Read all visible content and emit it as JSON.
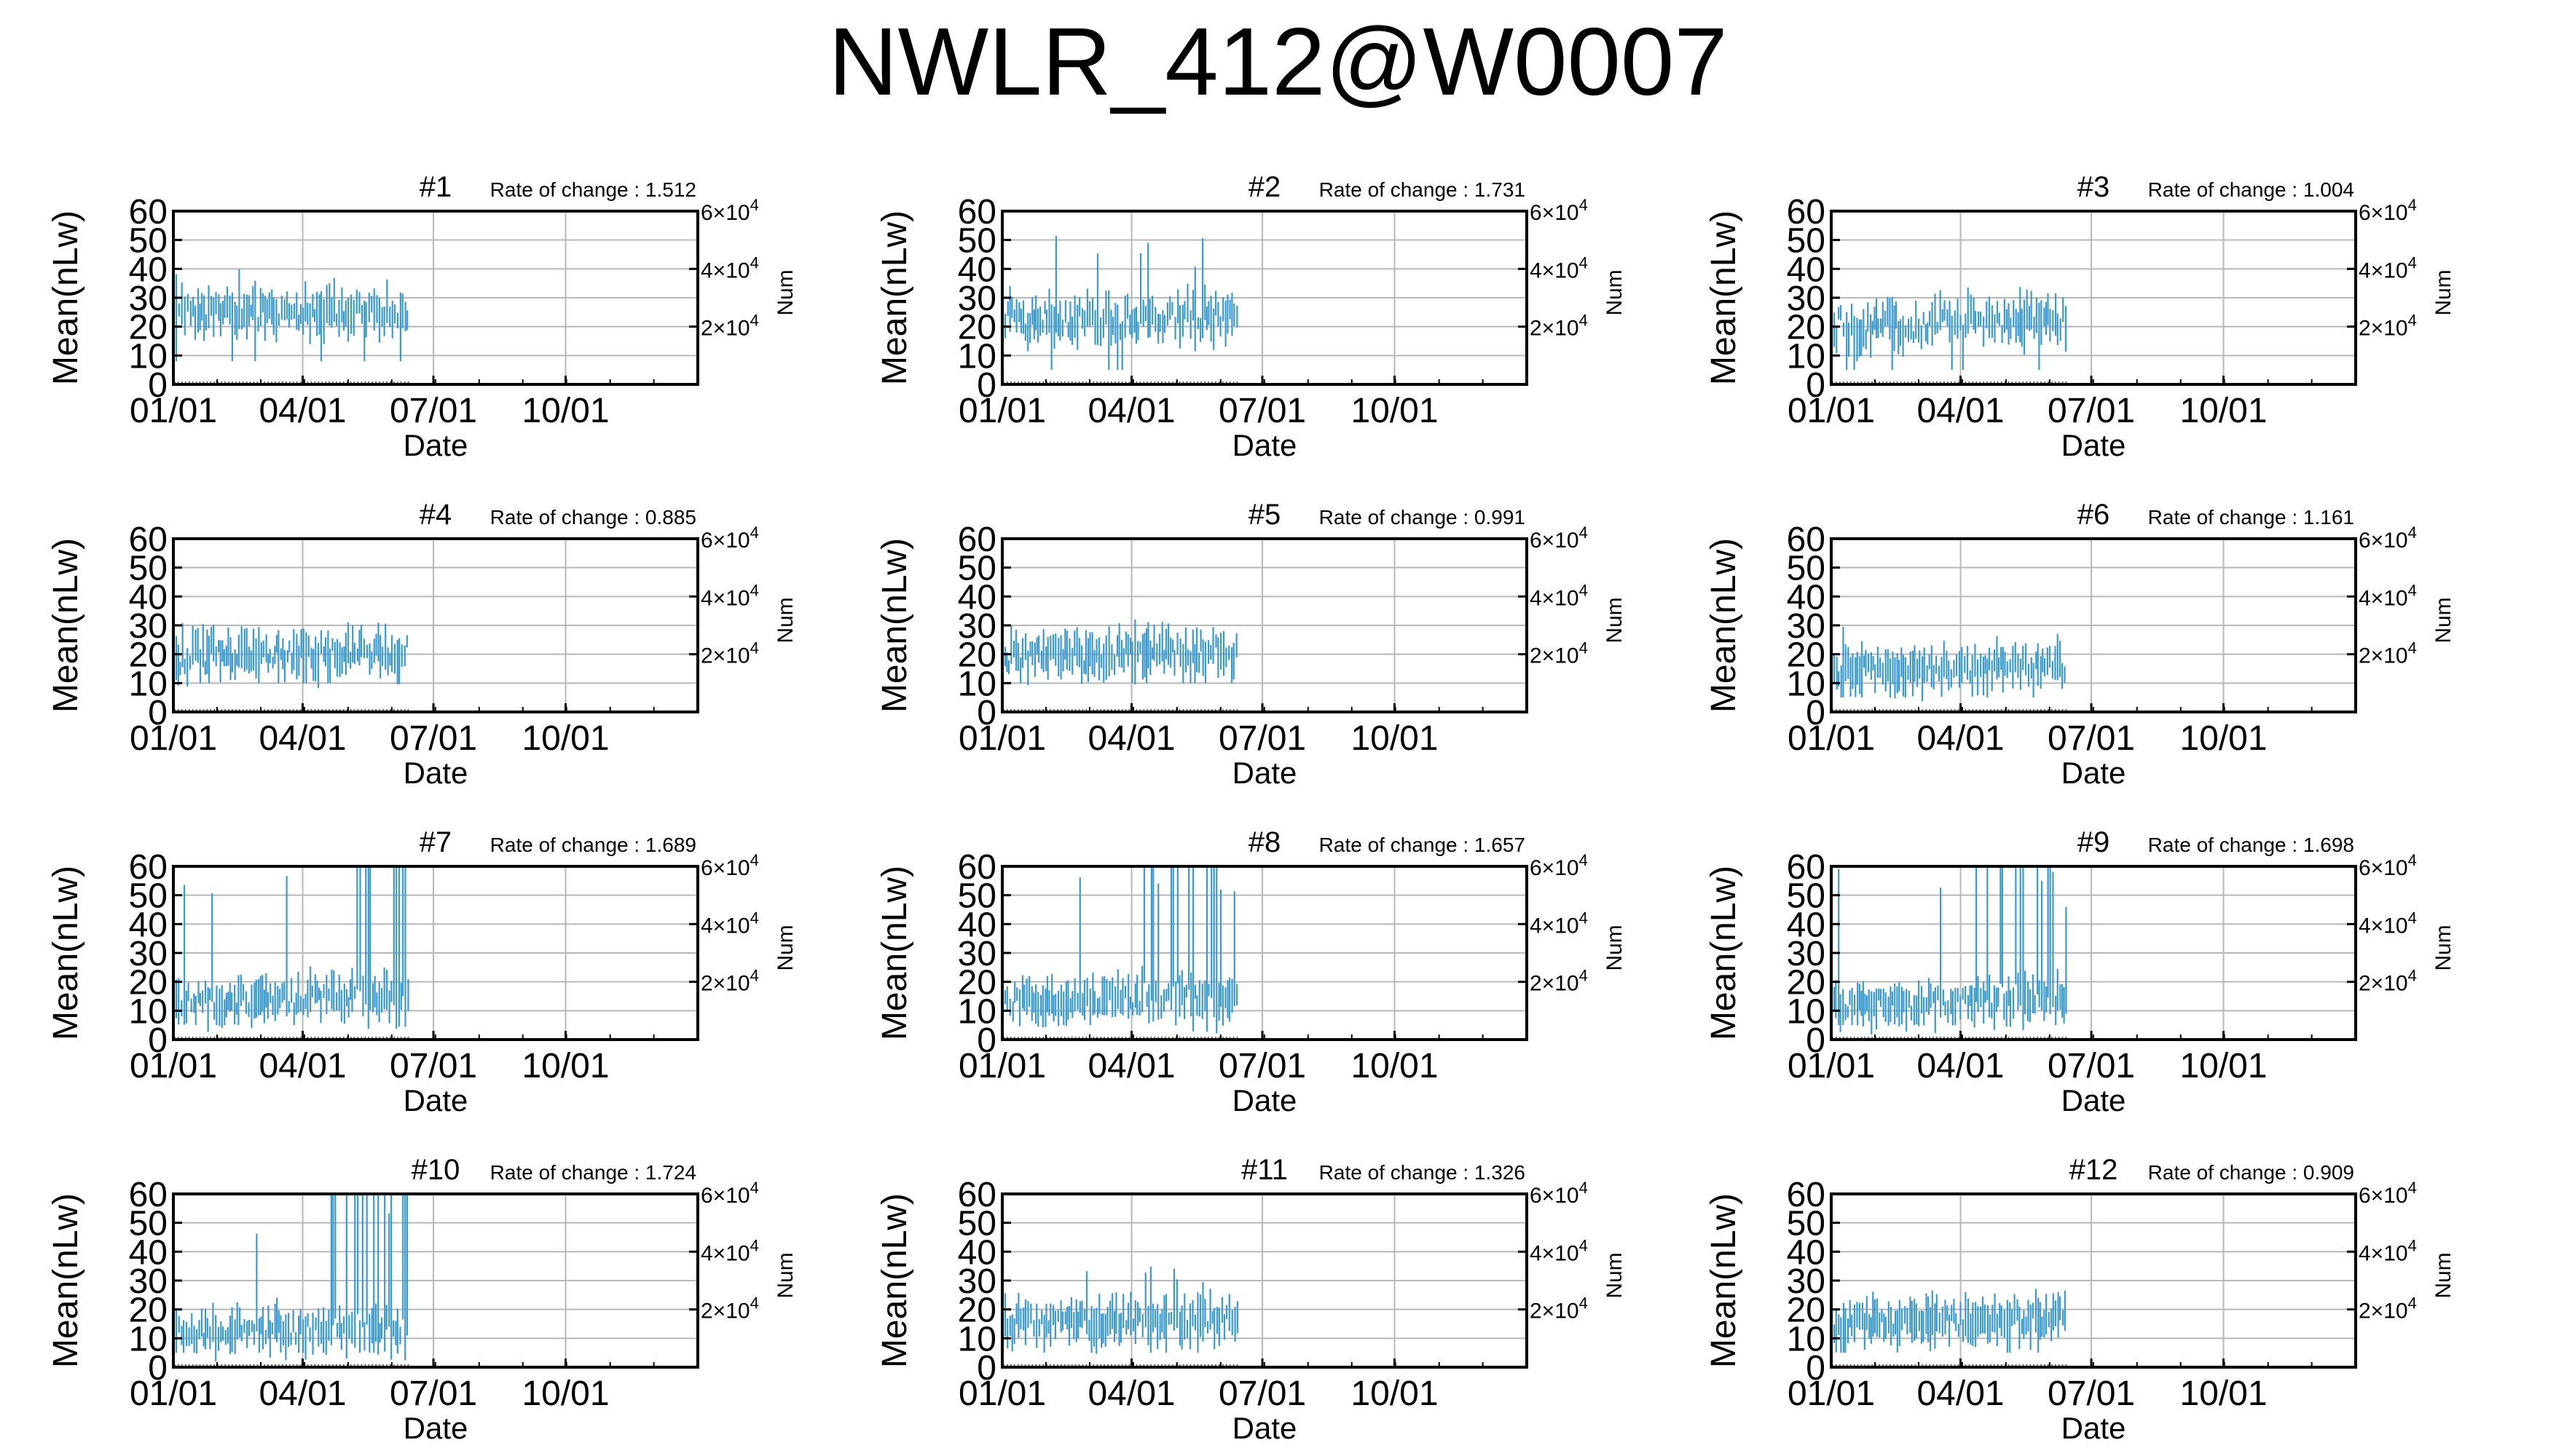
{
  "title": "NWLR_412@W0007",
  "axes": {
    "ylabel": "Mean(nLw)",
    "xlabel": "Date",
    "y2label": "Num",
    "yticks": [
      "0",
      "10",
      "20",
      "30",
      "40",
      "50",
      "60"
    ],
    "xticks": [
      "01/01",
      "04/01",
      "07/01",
      "10/01"
    ],
    "y2ticks": [
      {
        "mant": "2",
        "times": "×10",
        "exp": "4"
      },
      {
        "mant": "4",
        "times": "×10",
        "exp": "4"
      },
      {
        "mant": "6",
        "times": "×10",
        "exp": "4"
      }
    ],
    "rate_prefix": "Rate of change : "
  },
  "colors": {
    "data": "#3a9ad0",
    "grid": "#b8b8b8",
    "axis": "#000000",
    "count": "#555555"
  },
  "chart_data": [
    {
      "type": "line",
      "title": "#1",
      "rate": "1.512",
      "xlim": [
        0,
        365
      ],
      "ylim": [
        0,
        60
      ],
      "y2lim": [
        0,
        60000
      ],
      "x_range": [
        0,
        164
      ],
      "center": 24,
      "spread": 6,
      "outlier_range": [
        8,
        40
      ],
      "gridlines": true
    },
    {
      "type": "line",
      "title": "#2",
      "rate": "1.731",
      "xlim": [
        0,
        365
      ],
      "ylim": [
        0,
        60
      ],
      "y2lim": [
        0,
        60000
      ],
      "x_range": [
        0,
        164
      ],
      "center": 22,
      "spread": 7,
      "outlier_range": [
        5,
        52
      ],
      "gridlines": true
    },
    {
      "type": "line",
      "title": "#3",
      "rate": "1.004",
      "xlim": [
        0,
        365
      ],
      "ylim": [
        0,
        60
      ],
      "y2lim": [
        0,
        60000
      ],
      "x_range": [
        0,
        164
      ],
      "center": 20,
      "spread": 7,
      "outlier_range": [
        5,
        38
      ],
      "gridlines": true
    },
    {
      "type": "line",
      "title": "#4",
      "rate": "0.885",
      "xlim": [
        0,
        365
      ],
      "ylim": [
        0,
        60
      ],
      "y2lim": [
        0,
        60000
      ],
      "x_range": [
        0,
        164
      ],
      "center": 19,
      "spread": 6,
      "outlier_range": [
        10,
        33
      ],
      "gridlines": true
    },
    {
      "type": "line",
      "title": "#5",
      "rate": "0.991",
      "xlim": [
        0,
        365
      ],
      "ylim": [
        0,
        60
      ],
      "y2lim": [
        0,
        60000
      ],
      "x_range": [
        0,
        164
      ],
      "center": 19,
      "spread": 6,
      "outlier_range": [
        10,
        33
      ],
      "gridlines": true
    },
    {
      "type": "line",
      "title": "#6",
      "rate": "1.161",
      "xlim": [
        0,
        365
      ],
      "ylim": [
        0,
        60
      ],
      "y2lim": [
        0,
        60000
      ],
      "x_range": [
        0,
        164
      ],
      "center": 14,
      "spread": 5,
      "outlier_range": [
        5,
        31
      ],
      "gridlines": true
    },
    {
      "type": "line",
      "title": "#7",
      "rate": "1.689",
      "xlim": [
        0,
        365
      ],
      "ylim": [
        0,
        60
      ],
      "y2lim": [
        0,
        60000
      ],
      "x_range": [
        0,
        164
      ],
      "center": 13,
      "spread": 5,
      "outlier_range": [
        5,
        60
      ],
      "spikes_after": 125,
      "gridlines": true
    },
    {
      "type": "line",
      "title": "#8",
      "rate": "1.657",
      "xlim": [
        0,
        365
      ],
      "ylim": [
        0,
        60
      ],
      "y2lim": [
        0,
        60000
      ],
      "x_range": [
        0,
        164
      ],
      "center": 13,
      "spread": 5,
      "outlier_range": [
        5,
        60
      ],
      "spikes_after": 95,
      "gridlines": true
    },
    {
      "type": "line",
      "title": "#9",
      "rate": "1.698",
      "xlim": [
        0,
        365
      ],
      "ylim": [
        0,
        60
      ],
      "y2lim": [
        0,
        60000
      ],
      "x_range": [
        0,
        164
      ],
      "center": 12,
      "spread": 5,
      "outlier_range": [
        5,
        60
      ],
      "spikes_after": 92,
      "gridlines": true
    },
    {
      "type": "line",
      "title": "#10",
      "rate": "1.724",
      "xlim": [
        0,
        365
      ],
      "ylim": [
        0,
        60
      ],
      "y2lim": [
        0,
        60000
      ],
      "x_range": [
        0,
        164
      ],
      "center": 12,
      "spread": 5,
      "outlier_range": [
        5,
        60
      ],
      "spikes_after": 92,
      "gridlines": true
    },
    {
      "type": "line",
      "title": "#11",
      "rate": "1.326",
      "xlim": [
        0,
        365
      ],
      "ylim": [
        0,
        60
      ],
      "y2lim": [
        0,
        60000
      ],
      "x_range": [
        0,
        164
      ],
      "center": 15,
      "spread": 5,
      "outlier_range": [
        5,
        36
      ],
      "gridlines": true
    },
    {
      "type": "line",
      "title": "#12",
      "rate": "0.909",
      "xlim": [
        0,
        365
      ],
      "ylim": [
        0,
        60
      ],
      "y2lim": [
        0,
        60000
      ],
      "x_range": [
        0,
        164
      ],
      "center": 15,
      "spread": 5,
      "outlier_range": [
        5,
        25
      ],
      "gridlines": true
    }
  ]
}
